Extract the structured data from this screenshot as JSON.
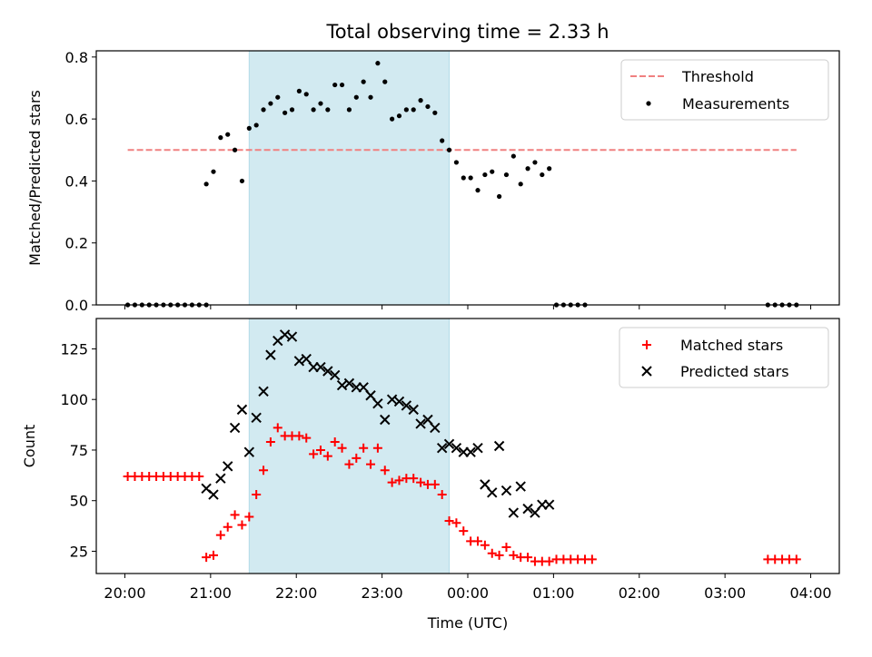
{
  "chart_data": {
    "title": "Total observing time = 2.33 h",
    "xlabel": "Time (UTC)",
    "x_ticks": [
      "20:00",
      "21:00",
      "22:00",
      "23:00",
      "00:00",
      "01:00",
      "02:00",
      "03:00",
      "04:00"
    ],
    "shaded_interval": {
      "start": "21:27",
      "end": "23:47",
      "color": "#add8e6"
    },
    "grid": false,
    "panels": [
      {
        "type": "scatter",
        "ylabel": "Matched/Predicted stars",
        "ylim": [
          0,
          0.82
        ],
        "y_ticks": [
          "0.0",
          "0.2",
          "0.4",
          "0.6",
          "0.8"
        ],
        "legend_position": "top-right",
        "series": [
          {
            "name": "Threshold",
            "style": "dashed-line",
            "color": "#f08080",
            "points": [
              [
                "20:02",
                0.5
              ],
              [
                "23:47",
                0.5
              ],
              [
                "03:50",
                0.5
              ]
            ]
          },
          {
            "name": "Measurements",
            "style": "dot",
            "color": "#000000",
            "points": [
              [
                "20:02",
                0
              ],
              [
                "20:07",
                0
              ],
              [
                "20:12",
                0
              ],
              [
                "20:17",
                0
              ],
              [
                "20:22",
                0
              ],
              [
                "20:27",
                0
              ],
              [
                "20:32",
                0
              ],
              [
                "20:37",
                0
              ],
              [
                "20:42",
                0
              ],
              [
                "20:47",
                0
              ],
              [
                "20:52",
                0
              ],
              [
                "20:57",
                0
              ],
              [
                "20:57",
                0.39
              ],
              [
                "21:02",
                0.43
              ],
              [
                "21:07",
                0.54
              ],
              [
                "21:12",
                0.55
              ],
              [
                "21:17",
                0.5
              ],
              [
                "21:22",
                0.4
              ],
              [
                "21:27",
                0.57
              ],
              [
                "21:32",
                0.58
              ],
              [
                "21:37",
                0.63
              ],
              [
                "21:42",
                0.65
              ],
              [
                "21:47",
                0.67
              ],
              [
                "21:52",
                0.62
              ],
              [
                "21:57",
                0.63
              ],
              [
                "22:02",
                0.69
              ],
              [
                "22:07",
                0.68
              ],
              [
                "22:12",
                0.63
              ],
              [
                "22:17",
                0.65
              ],
              [
                "22:22",
                0.63
              ],
              [
                "22:27",
                0.71
              ],
              [
                "22:32",
                0.71
              ],
              [
                "22:37",
                0.63
              ],
              [
                "22:42",
                0.67
              ],
              [
                "22:47",
                0.72
              ],
              [
                "22:52",
                0.67
              ],
              [
                "22:57",
                0.78
              ],
              [
                "23:02",
                0.72
              ],
              [
                "23:07",
                0.6
              ],
              [
                "23:12",
                0.61
              ],
              [
                "23:17",
                0.63
              ],
              [
                "23:22",
                0.63
              ],
              [
                "23:27",
                0.66
              ],
              [
                "23:32",
                0.64
              ],
              [
                "23:37",
                0.62
              ],
              [
                "23:42",
                0.53
              ],
              [
                "23:47",
                0.5
              ],
              [
                "23:52",
                0.46
              ],
              [
                "23:57",
                0.41
              ],
              [
                "00:02",
                0.41
              ],
              [
                "00:07",
                0.37
              ],
              [
                "00:12",
                0.42
              ],
              [
                "00:17",
                0.43
              ],
              [
                "00:22",
                0.35
              ],
              [
                "00:27",
                0.42
              ],
              [
                "00:32",
                0.48
              ],
              [
                "00:37",
                0.39
              ],
              [
                "00:42",
                0.44
              ],
              [
                "00:47",
                0.46
              ],
              [
                "00:52",
                0.42
              ],
              [
                "00:57",
                0.44
              ],
              [
                "01:02",
                0
              ],
              [
                "01:07",
                0
              ],
              [
                "01:12",
                0
              ],
              [
                "01:17",
                0
              ],
              [
                "01:22",
                0
              ],
              [
                "03:30",
                0
              ],
              [
                "03:35",
                0
              ],
              [
                "03:40",
                0
              ],
              [
                "03:45",
                0
              ],
              [
                "03:50",
                0
              ]
            ]
          }
        ]
      },
      {
        "type": "scatter",
        "ylabel": "Count",
        "ylim": [
          14,
          140
        ],
        "y_ticks": [
          "25",
          "50",
          "75",
          "100",
          "125"
        ],
        "legend_position": "top-right",
        "series": [
          {
            "name": "Matched stars",
            "style": "plus",
            "color": "#ff0000",
            "points": [
              [
                "20:02",
                62
              ],
              [
                "20:07",
                62
              ],
              [
                "20:12",
                62
              ],
              [
                "20:17",
                62
              ],
              [
                "20:22",
                62
              ],
              [
                "20:27",
                62
              ],
              [
                "20:32",
                62
              ],
              [
                "20:37",
                62
              ],
              [
                "20:42",
                62
              ],
              [
                "20:47",
                62
              ],
              [
                "20:52",
                62
              ],
              [
                "20:57",
                22
              ],
              [
                "21:02",
                23
              ],
              [
                "21:07",
                33
              ],
              [
                "21:12",
                37
              ],
              [
                "21:17",
                43
              ],
              [
                "21:22",
                38
              ],
              [
                "21:27",
                42
              ],
              [
                "21:32",
                53
              ],
              [
                "21:37",
                65
              ],
              [
                "21:42",
                79
              ],
              [
                "21:47",
                86
              ],
              [
                "21:52",
                82
              ],
              [
                "21:57",
                82
              ],
              [
                "22:02",
                82
              ],
              [
                "22:07",
                81
              ],
              [
                "22:12",
                73
              ],
              [
                "22:17",
                75
              ],
              [
                "22:22",
                72
              ],
              [
                "22:27",
                79
              ],
              [
                "22:32",
                76
              ],
              [
                "22:37",
                68
              ],
              [
                "22:42",
                71
              ],
              [
                "22:47",
                76
              ],
              [
                "22:52",
                68
              ],
              [
                "22:57",
                76
              ],
              [
                "23:02",
                65
              ],
              [
                "23:07",
                59
              ],
              [
                "23:12",
                60
              ],
              [
                "23:17",
                61
              ],
              [
                "23:22",
                61
              ],
              [
                "23:27",
                59
              ],
              [
                "23:32",
                58
              ],
              [
                "23:37",
                58
              ],
              [
                "23:42",
                53
              ],
              [
                "23:47",
                40
              ],
              [
                "23:52",
                39
              ],
              [
                "23:57",
                35
              ],
              [
                "00:02",
                30
              ],
              [
                "00:07",
                30
              ],
              [
                "00:12",
                28
              ],
              [
                "00:17",
                24
              ],
              [
                "00:22",
                23
              ],
              [
                "00:27",
                27
              ],
              [
                "00:32",
                23
              ],
              [
                "00:37",
                22
              ],
              [
                "00:42",
                22
              ],
              [
                "00:47",
                20
              ],
              [
                "00:52",
                20
              ],
              [
                "00:57",
                20
              ],
              [
                "01:02",
                21
              ],
              [
                "01:07",
                21
              ],
              [
                "01:12",
                21
              ],
              [
                "01:17",
                21
              ],
              [
                "01:22",
                21
              ],
              [
                "01:27",
                21
              ],
              [
                "03:30",
                21
              ],
              [
                "03:35",
                21
              ],
              [
                "03:40",
                21
              ],
              [
                "03:45",
                21
              ],
              [
                "03:50",
                21
              ]
            ]
          },
          {
            "name": "Predicted stars",
            "style": "x",
            "color": "#000000",
            "points": [
              [
                "20:57",
                56
              ],
              [
                "21:02",
                53
              ],
              [
                "21:07",
                61
              ],
              [
                "21:12",
                67
              ],
              [
                "21:17",
                86
              ],
              [
                "21:22",
                95
              ],
              [
                "21:27",
                74
              ],
              [
                "21:32",
                91
              ],
              [
                "21:37",
                104
              ],
              [
                "21:42",
                122
              ],
              [
                "21:47",
                129
              ],
              [
                "21:52",
                132
              ],
              [
                "21:57",
                131
              ],
              [
                "22:02",
                119
              ],
              [
                "22:07",
                120
              ],
              [
                "22:12",
                116
              ],
              [
                "22:17",
                116
              ],
              [
                "22:22",
                114
              ],
              [
                "22:27",
                112
              ],
              [
                "22:32",
                107
              ],
              [
                "22:37",
                108
              ],
              [
                "22:42",
                106
              ],
              [
                "22:47",
                106
              ],
              [
                "22:52",
                102
              ],
              [
                "22:57",
                98
              ],
              [
                "23:02",
                90
              ],
              [
                "23:07",
                100
              ],
              [
                "23:12",
                99
              ],
              [
                "23:17",
                97
              ],
              [
                "23:22",
                95
              ],
              [
                "23:27",
                88
              ],
              [
                "23:32",
                90
              ],
              [
                "23:37",
                86
              ],
              [
                "23:42",
                76
              ],
              [
                "23:47",
                78
              ],
              [
                "23:52",
                76
              ],
              [
                "23:57",
                74
              ],
              [
                "00:02",
                74
              ],
              [
                "00:07",
                76
              ],
              [
                "00:12",
                58
              ],
              [
                "00:17",
                54
              ],
              [
                "00:22",
                77
              ],
              [
                "00:27",
                55
              ],
              [
                "00:32",
                44
              ],
              [
                "00:37",
                57
              ],
              [
                "00:42",
                46
              ],
              [
                "00:47",
                44
              ],
              [
                "00:52",
                48
              ],
              [
                "00:57",
                48
              ]
            ]
          }
        ]
      }
    ]
  }
}
